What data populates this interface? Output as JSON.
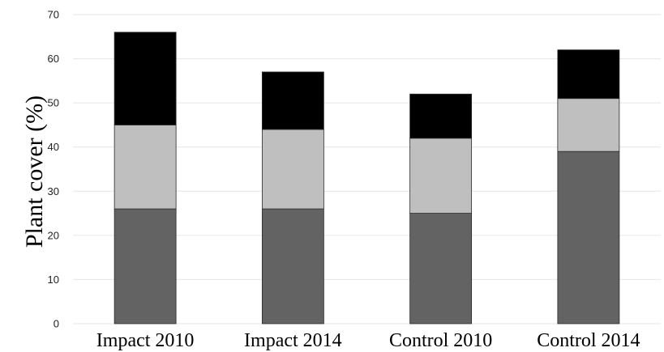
{
  "chart_data": {
    "type": "bar",
    "stacked": true,
    "title": "",
    "xlabel": "",
    "ylabel": "Plant cover (%)",
    "ylim": [
      0,
      70
    ],
    "yticks": [
      0,
      10,
      20,
      30,
      40,
      50,
      60,
      70
    ],
    "grid": true,
    "categories": [
      "Impact 2010",
      "Impact 2014",
      "Control 2010",
      "Control 2014"
    ],
    "series": [
      {
        "color": "#636363",
        "values": [
          26,
          26,
          25,
          39
        ]
      },
      {
        "color": "#bfbfbf",
        "values": [
          19,
          18,
          17,
          12
        ]
      },
      {
        "color": "#000000",
        "values": [
          21,
          13,
          10,
          11
        ]
      }
    ]
  }
}
